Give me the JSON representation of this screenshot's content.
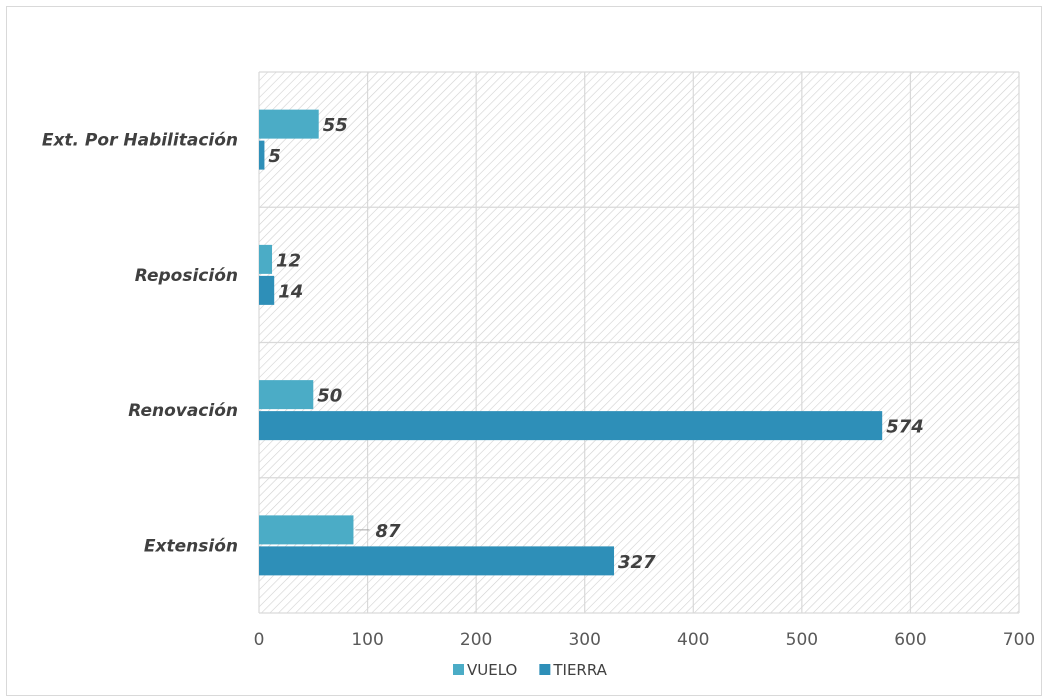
{
  "chart_data": {
    "type": "bar",
    "orientation": "horizontal",
    "categories": [
      "Ext. Por Habilitación",
      "Reposición",
      "Renovación",
      "Extensión"
    ],
    "series": [
      {
        "name": "VUELO",
        "color": "#4bacc6",
        "values": [
          55,
          12,
          50,
          87
        ]
      },
      {
        "name": "TIERRA",
        "color": "#2e8fb8",
        "values": [
          5,
          14,
          574,
          327
        ]
      }
    ],
    "xlim": [
      0,
      700
    ],
    "xticks": [
      0,
      100,
      200,
      300,
      400,
      500,
      600,
      700
    ],
    "grid": true,
    "legend_position": "bottom"
  }
}
